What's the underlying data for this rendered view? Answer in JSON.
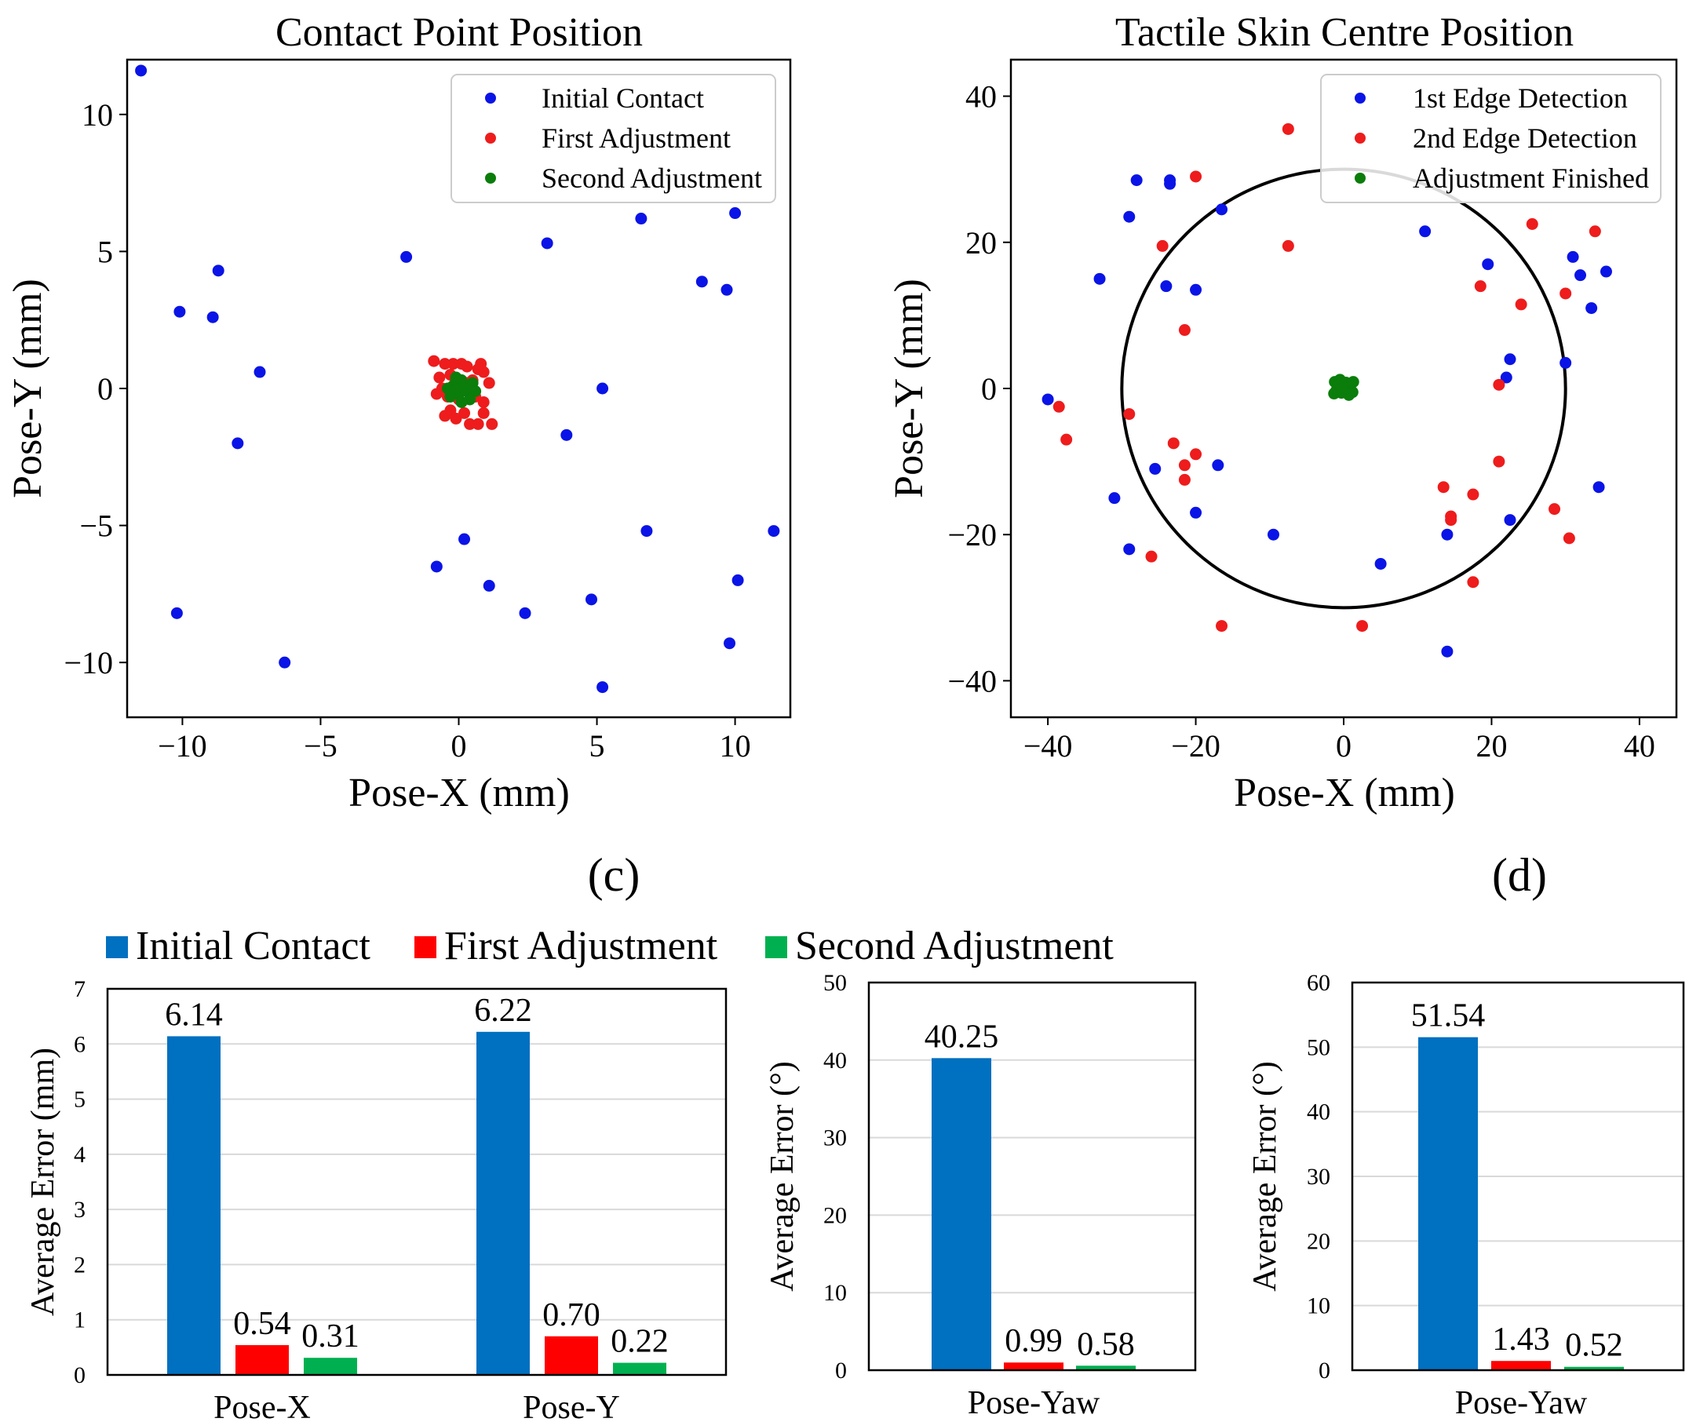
{
  "colors": {
    "scatter_blue": "#0a14e6",
    "scatter_red": "#ee1c1c",
    "scatter_green": "#0a7d0a",
    "bar_blue": "#0070c0",
    "bar_red": "#ff0000",
    "bar_green": "#00b050"
  },
  "chart_data": [
    {
      "id": "contact-point",
      "type": "scatter",
      "title": "Contact Point Position",
      "xlabel": "Pose-X (mm)",
      "ylabel": "Pose-Y (mm)",
      "xlim": [
        -12,
        12
      ],
      "ylim": [
        -12,
        12
      ],
      "xticks": [
        -10,
        -5,
        0,
        5,
        10
      ],
      "yticks": [
        10,
        5,
        0,
        -5,
        -10
      ],
      "xtick_labels": [
        "−10",
        "−5",
        "0",
        "5",
        "10"
      ],
      "ytick_labels": [
        "10",
        "5",
        "0",
        "−5",
        "−10"
      ],
      "legend": [
        "Initial Contact",
        "First Adjustment",
        "Second Adjustment"
      ],
      "legend_position": "top-right",
      "series": [
        {
          "name": "Initial Contact",
          "color": "#0a14e6",
          "points": [
            [
              -11.5,
              11.6
            ],
            [
              -10.1,
              2.8
            ],
            [
              -8.9,
              2.6
            ],
            [
              -8.7,
              4.3
            ],
            [
              -7.2,
              0.6
            ],
            [
              -8.0,
              -2.0
            ],
            [
              -10.2,
              -8.2
            ],
            [
              -6.3,
              -10.0
            ],
            [
              -1.9,
              4.8
            ],
            [
              3.2,
              5.3
            ],
            [
              6.6,
              6.2
            ],
            [
              8.8,
              3.9
            ],
            [
              9.7,
              3.6
            ],
            [
              10.0,
              6.4
            ],
            [
              5.2,
              0.0
            ],
            [
              3.9,
              -1.7
            ],
            [
              0.2,
              -5.5
            ],
            [
              -0.8,
              -6.5
            ],
            [
              1.1,
              -7.2
            ],
            [
              2.4,
              -8.2
            ],
            [
              4.8,
              -7.7
            ],
            [
              6.8,
              -5.2
            ],
            [
              10.1,
              -7.0
            ],
            [
              11.4,
              -5.2
            ],
            [
              9.8,
              -9.3
            ],
            [
              5.2,
              -10.9
            ]
          ]
        },
        {
          "name": "First Adjustment",
          "color": "#ee1c1c",
          "points": [
            [
              -0.9,
              1.0
            ],
            [
              -0.5,
              0.9
            ],
            [
              0.1,
              0.9
            ],
            [
              0.3,
              0.8
            ],
            [
              0.7,
              0.7
            ],
            [
              0.9,
              0.6
            ],
            [
              -0.7,
              0.4
            ],
            [
              -0.3,
              0.5
            ],
            [
              0.5,
              0.3
            ],
            [
              1.1,
              0.2
            ],
            [
              -0.8,
              -0.2
            ],
            [
              -0.4,
              -0.3
            ],
            [
              0.0,
              -0.4
            ],
            [
              0.6,
              -0.3
            ],
            [
              0.9,
              -0.5
            ],
            [
              -0.5,
              -1.0
            ],
            [
              -0.1,
              -1.1
            ],
            [
              0.4,
              -1.3
            ],
            [
              0.7,
              -1.3
            ],
            [
              1.2,
              -1.3
            ],
            [
              -0.3,
              -0.8
            ],
            [
              0.2,
              -0.9
            ],
            [
              0.9,
              -0.9
            ],
            [
              -0.6,
              0.0
            ],
            [
              0.3,
              0.2
            ],
            [
              -0.2,
              0.9
            ],
            [
              0.8,
              0.9
            ]
          ]
        },
        {
          "name": "Second Adjustment",
          "color": "#0a7d0a",
          "points": [
            [
              -0.2,
              0.1
            ],
            [
              0.1,
              0.3
            ],
            [
              0.3,
              -0.1
            ],
            [
              0.5,
              0.2
            ],
            [
              0.0,
              -0.2
            ],
            [
              -0.3,
              -0.3
            ],
            [
              0.2,
              0.0
            ],
            [
              0.4,
              -0.4
            ],
            [
              -0.1,
              0.4
            ],
            [
              0.6,
              -0.1
            ],
            [
              0.1,
              -0.5
            ],
            [
              -0.4,
              0.0
            ]
          ]
        }
      ]
    },
    {
      "id": "skin-centre",
      "type": "scatter",
      "title": "Tactile Skin Centre Position",
      "xlabel": "Pose-X (mm)",
      "ylabel": "Pose-Y (mm)",
      "xlim": [
        -45,
        45
      ],
      "ylim": [
        -45,
        45
      ],
      "xticks": [
        -40,
        -20,
        0,
        20,
        40
      ],
      "yticks": [
        40,
        20,
        0,
        -20,
        -40
      ],
      "xtick_labels": [
        "−40",
        "−20",
        "0",
        "20",
        "40"
      ],
      "ytick_labels": [
        "40",
        "20",
        "0",
        "−20",
        "−40"
      ],
      "circle_radius": 30,
      "legend": [
        "1st Edge Detection",
        "2nd Edge Detection",
        "Adjustment Finished"
      ],
      "legend_position": "top-right",
      "series": [
        {
          "name": "1st Edge Detection",
          "color": "#0a14e6",
          "points": [
            [
              -28,
              28.5
            ],
            [
              -23.5,
              28.5
            ],
            [
              -23.5,
              28.0
            ],
            [
              -16.5,
              24.5
            ],
            [
              -29,
              23.5
            ],
            [
              -33,
              15.0
            ],
            [
              -24,
              14.0
            ],
            [
              -20,
              13.5
            ],
            [
              -40,
              -1.5
            ],
            [
              -31,
              -15.0
            ],
            [
              -25.5,
              -11.0
            ],
            [
              -17,
              -10.5
            ],
            [
              -20,
              -17.0
            ],
            [
              -29,
              -22.0
            ],
            [
              -9.5,
              -20.0
            ],
            [
              5,
              -24.0
            ],
            [
              14,
              -20.0
            ],
            [
              14,
              -36.0
            ],
            [
              11,
              21.5
            ],
            [
              19.5,
              17.0
            ],
            [
              22.5,
              4.0
            ],
            [
              22,
              1.5
            ],
            [
              22.5,
              -18.0
            ],
            [
              30,
              3.5
            ],
            [
              31,
              18.0
            ],
            [
              32,
              15.5
            ],
            [
              33.5,
              11.0
            ],
            [
              34.5,
              -13.5
            ],
            [
              35.5,
              16.0
            ]
          ]
        },
        {
          "name": "2nd Edge Detection",
          "color": "#ee1c1c",
          "points": [
            [
              -7.5,
              35.5
            ],
            [
              -20,
              29.0
            ],
            [
              -24.5,
              19.5
            ],
            [
              -7.5,
              19.5
            ],
            [
              -21.5,
              8.0
            ],
            [
              -38.5,
              -2.5
            ],
            [
              -37.5,
              -7.0
            ],
            [
              -29,
              -3.5
            ],
            [
              -23,
              -7.5
            ],
            [
              -21.5,
              -10.5
            ],
            [
              -20,
              -9.0
            ],
            [
              -21.5,
              -12.5
            ],
            [
              -26,
              -23.0
            ],
            [
              -16.5,
              -32.5
            ],
            [
              2.5,
              -32.5
            ],
            [
              13.5,
              -13.5
            ],
            [
              14.5,
              -17.5
            ],
            [
              14.5,
              -18.0
            ],
            [
              17.5,
              -14.5
            ],
            [
              17.5,
              -26.5
            ],
            [
              21,
              0.5
            ],
            [
              21,
              -10.0
            ],
            [
              18.5,
              14.0
            ],
            [
              24,
              11.5
            ],
            [
              25.5,
              22.5
            ],
            [
              28.5,
              -16.5
            ],
            [
              30,
              13.0
            ],
            [
              30.5,
              -20.5
            ],
            [
              34,
              21.5
            ]
          ]
        },
        {
          "name": "Adjustment Finished",
          "color": "#0a7d0a",
          "points": [
            [
              -1.2,
              0.9
            ],
            [
              -0.5,
              1.2
            ],
            [
              0.3,
              0.8
            ],
            [
              0.9,
              0.4
            ],
            [
              1.2,
              -0.5
            ],
            [
              -1.0,
              -0.3
            ],
            [
              -0.3,
              -0.6
            ],
            [
              0.5,
              -0.2
            ],
            [
              -0.8,
              0.3
            ],
            [
              0.0,
              0.2
            ],
            [
              1.3,
              0.9
            ],
            [
              -1.3,
              -0.7
            ],
            [
              0.7,
              -0.9
            ],
            [
              -0.2,
              -0.1
            ]
          ]
        }
      ]
    },
    {
      "id": "bar-position",
      "type": "bar",
      "ylabel": "Average Error (mm)",
      "ylim": [
        0,
        7
      ],
      "yticks": [
        0,
        1,
        2,
        3,
        4,
        5,
        6,
        7
      ],
      "categories": [
        "Pose-X",
        "Pose-Y"
      ],
      "series": [
        {
          "name": "Initial Contact",
          "values": [
            6.14,
            6.22
          ],
          "labels": [
            "6.14",
            "6.22"
          ]
        },
        {
          "name": "First Adjustment",
          "values": [
            0.54,
            0.7
          ],
          "labels": [
            "0.54",
            "0.70"
          ]
        },
        {
          "name": "Second Adjustment",
          "values": [
            0.31,
            0.22
          ],
          "labels": [
            "0.31",
            "0.22"
          ]
        }
      ]
    },
    {
      "id": "bar-yaw-c",
      "type": "bar",
      "ylabel": "Average Error (°)",
      "ylim": [
        0,
        50
      ],
      "yticks": [
        0,
        10,
        20,
        30,
        40,
        50
      ],
      "categories": [
        "Pose-Yaw"
      ],
      "series": [
        {
          "name": "Initial Contact",
          "values": [
            40.25
          ],
          "labels": [
            "40.25"
          ]
        },
        {
          "name": "First Adjustment",
          "values": [
            0.99
          ],
          "labels": [
            "0.99"
          ]
        },
        {
          "name": "Second Adjustment",
          "values": [
            0.58
          ],
          "labels": [
            "0.58"
          ]
        }
      ]
    },
    {
      "id": "bar-yaw-d",
      "type": "bar",
      "ylabel": "Average Error (°)",
      "ylim": [
        0,
        60
      ],
      "yticks": [
        0,
        10,
        20,
        30,
        40,
        50,
        60
      ],
      "categories": [
        "Pose-Yaw"
      ],
      "series": [
        {
          "name": "Initial Contact",
          "values": [
            51.54
          ],
          "labels": [
            "51.54"
          ]
        },
        {
          "name": "First Adjustment",
          "values": [
            1.43
          ],
          "labels": [
            "1.43"
          ]
        },
        {
          "name": "Second Adjustment",
          "values": [
            0.52
          ],
          "labels": [
            "0.52"
          ]
        }
      ]
    }
  ],
  "panel_labels": {
    "c": "(c)",
    "d": "(d)"
  },
  "bar_legend": [
    "Initial Contact",
    "First Adjustment",
    "Second Adjustment"
  ]
}
